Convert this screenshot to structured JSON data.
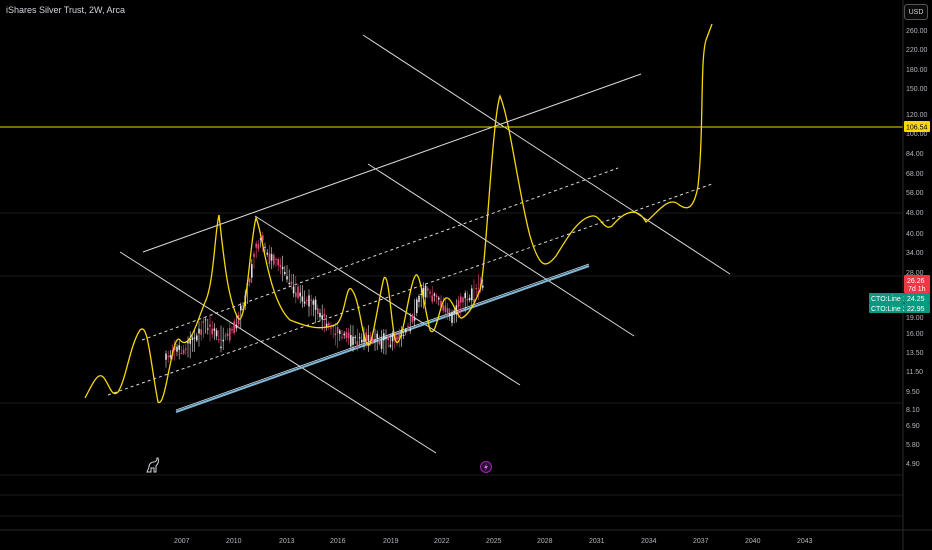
{
  "header": {
    "title": "iShares Silver Trust, 2W, Arca",
    "currency_button": "USD"
  },
  "price_scale": {
    "ticks": [
      "260.00",
      "220.00",
      "180.00",
      "150.00",
      "120.00",
      "100.00",
      "84.00",
      "68.00",
      "58.00",
      "48.00",
      "40.00",
      "34.00",
      "28.00",
      "19.00",
      "16.00",
      "13.50",
      "11.50",
      "9.50",
      "8.10",
      "6.90",
      "5.80",
      "4.90"
    ]
  },
  "time_scale": {
    "ticks": [
      "2007",
      "2010",
      "2013",
      "2016",
      "2019",
      "2022",
      "2025",
      "2028",
      "2031",
      "2034",
      "2037",
      "2040",
      "2043"
    ]
  },
  "price_tags": {
    "level": {
      "value": "106.54",
      "color": "#f5d90a",
      "text_color": "#000000"
    },
    "last_price": {
      "value": "26.26",
      "color": "#f23645",
      "text_color": "#ffffff"
    },
    "countdown": {
      "value": "7d 1h",
      "color": "#f23645",
      "text_color": "#ffffff"
    },
    "cto_line1": {
      "label": "CTO:Line 1",
      "value": "24.25",
      "color": "#089981",
      "text_color": "#ffffff"
    },
    "cto_line2": {
      "label": "CTO:Line 2",
      "value": "22.95",
      "color": "#089981",
      "text_color": "#ffffff"
    }
  },
  "colors": {
    "background": "#000000",
    "grid": "#1c1c1c",
    "projection": "#f5d90a",
    "channel_lines": "#d9d9d9",
    "support_line": "#7fb7d9",
    "bull_candle": "#e0e0e0",
    "bear_candle": "#e84a7a",
    "accent_purple": "#9c27b0"
  },
  "icons": {
    "dividends_marker": "dino-icon",
    "earnings_marker": "lightning-icon"
  }
}
